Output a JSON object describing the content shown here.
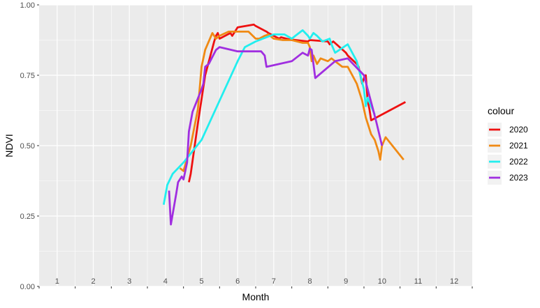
{
  "chart_data": {
    "type": "line",
    "xlabel": "Month",
    "ylabel": "NDVI",
    "xlim": [
      0.5,
      12.5
    ],
    "ylim": [
      0,
      1
    ],
    "x_ticks": [
      1,
      2,
      3,
      4,
      5,
      6,
      7,
      8,
      9,
      10,
      11,
      12
    ],
    "x_tick_labels": [
      "1",
      "2",
      "3",
      "4",
      "5",
      "6",
      "7",
      "8",
      "9",
      "10",
      "11",
      "12"
    ],
    "y_ticks": [
      0,
      0.25,
      0.5,
      0.75,
      1
    ],
    "y_tick_labels": [
      "0.00",
      "0.25",
      "0.50",
      "0.75",
      "1.00"
    ],
    "grid": true,
    "legend": {
      "title": "colour",
      "position": "right"
    },
    "series": [
      {
        "name": "2020",
        "color": "#ee1111",
        "x": [
          4.65,
          4.7,
          4.9,
          5.1,
          5.35,
          5.4,
          5.45,
          5.5,
          5.8,
          5.85,
          5.95,
          6.0,
          6.45,
          6.5,
          6.8,
          6.85,
          7.15,
          7.2,
          7.5,
          7.55,
          7.95,
          8.0,
          8.5,
          8.55,
          8.6,
          8.65,
          9.0,
          9.05,
          9.3,
          9.35,
          9.45,
          9.5,
          9.55,
          9.6,
          9.65,
          9.7,
          10.65
        ],
        "y": [
          0.37,
          0.4,
          0.58,
          0.75,
          0.87,
          0.89,
          0.9,
          0.88,
          0.9,
          0.89,
          0.91,
          0.92,
          0.93,
          0.925,
          0.905,
          0.9,
          0.88,
          0.885,
          0.875,
          0.876,
          0.87,
          0.875,
          0.87,
          0.86,
          0.865,
          0.87,
          0.83,
          0.82,
          0.79,
          0.78,
          0.72,
          0.74,
          0.75,
          0.66,
          0.63,
          0.59,
          0.655
        ]
      },
      {
        "name": "2021",
        "color": "#f08a14",
        "x": [
          4.4,
          4.5,
          4.7,
          4.9,
          5.0,
          5.1,
          5.3,
          5.4,
          5.5,
          5.75,
          5.9,
          6.0,
          6.3,
          6.5,
          6.6,
          6.75,
          6.85,
          7.0,
          7.25,
          7.5,
          7.8,
          7.95,
          8.0,
          8.05,
          8.1,
          8.2,
          8.3,
          8.5,
          8.6,
          8.9,
          9.05,
          9.3,
          9.45,
          9.55,
          9.6,
          9.7,
          9.8,
          9.9,
          9.95,
          10.0,
          10.1,
          10.6
        ],
        "y": [
          0.42,
          0.41,
          0.5,
          0.63,
          0.78,
          0.84,
          0.9,
          0.88,
          0.89,
          0.905,
          0.905,
          0.905,
          0.905,
          0.88,
          0.88,
          0.89,
          0.895,
          0.88,
          0.875,
          0.875,
          0.865,
          0.865,
          0.85,
          0.8,
          0.82,
          0.79,
          0.81,
          0.8,
          0.81,
          0.78,
          0.78,
          0.72,
          0.66,
          0.6,
          0.58,
          0.54,
          0.52,
          0.48,
          0.45,
          0.5,
          0.53,
          0.45
        ]
      },
      {
        "name": "2022",
        "color": "#22eeee",
        "x": [
          3.95,
          4.05,
          4.2,
          4.5,
          5.0,
          5.5,
          6.0,
          6.2,
          6.5,
          7.0,
          7.3,
          7.5,
          7.6,
          7.8,
          7.95,
          8.0,
          8.1,
          8.2,
          8.35,
          8.55,
          8.6,
          8.7,
          9.05,
          9.3,
          9.5,
          9.55,
          9.6,
          9.7,
          9.8
        ],
        "y": [
          0.29,
          0.36,
          0.4,
          0.44,
          0.52,
          0.66,
          0.8,
          0.85,
          0.87,
          0.895,
          0.895,
          0.88,
          0.89,
          0.91,
          0.89,
          0.88,
          0.9,
          0.89,
          0.87,
          0.88,
          0.86,
          0.83,
          0.86,
          0.8,
          0.7,
          0.64,
          0.67,
          0.64,
          0.61
        ]
      },
      {
        "name": "2023",
        "color": "#a02ee0",
        "x": [
          4.1,
          4.15,
          4.3,
          4.35,
          4.45,
          4.5,
          4.6,
          4.65,
          4.75,
          5.0,
          5.05,
          5.1,
          5.2,
          5.4,
          5.5,
          6.0,
          6.5,
          6.65,
          6.75,
          6.8,
          7.5,
          7.8,
          7.95,
          8.0,
          8.05,
          8.15,
          8.7,
          9.05,
          9.5,
          9.75,
          9.85,
          10.0
        ],
        "y": [
          0.34,
          0.22,
          0.33,
          0.37,
          0.39,
          0.38,
          0.44,
          0.55,
          0.62,
          0.7,
          0.72,
          0.78,
          0.79,
          0.84,
          0.85,
          0.835,
          0.835,
          0.835,
          0.82,
          0.78,
          0.8,
          0.83,
          0.82,
          0.845,
          0.84,
          0.74,
          0.8,
          0.81,
          0.75,
          0.63,
          0.58,
          0.5
        ]
      }
    ]
  }
}
